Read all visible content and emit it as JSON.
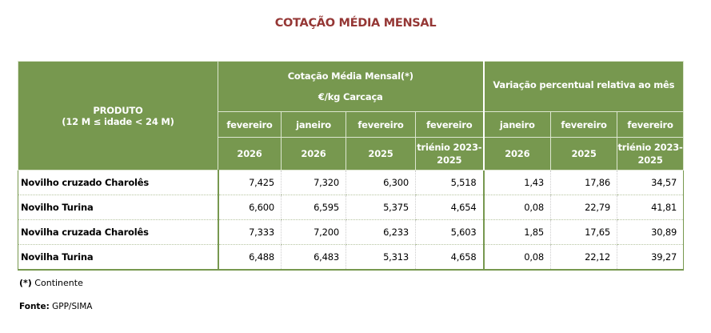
{
  "title": "COTAÇÃO MÉDIA MENSAL",
  "header": {
    "produto": "PRODUTO",
    "idade": "(12 M ≤ idade < 24 M)",
    "group1_line1": "Cotação Média Mensal(*)",
    "group1_line2": "€/kg Carcaça",
    "group2": "Variação percentual relativa  ao mês",
    "months": [
      "fevereiro",
      "janeiro",
      "fevereiro",
      "fevereiro",
      "janeiro",
      "fevereiro",
      "fevereiro"
    ],
    "years": [
      "2026",
      "2026",
      "2025",
      "triénio 2023-2025",
      "2026",
      "2025",
      "triénio 2023-2025"
    ]
  },
  "rows": [
    {
      "produto": "Novilho  cruzado Charolês",
      "values": [
        "7,425",
        "7,320",
        "6,300",
        "5,518",
        "1,43",
        "17,86",
        "34,57"
      ]
    },
    {
      "produto": "Novilho Turina",
      "values": [
        "6,600",
        "6,595",
        "5,375",
        "4,654",
        "0,08",
        "22,79",
        "41,81"
      ]
    },
    {
      "produto": "Novilha cruzada Charolês",
      "values": [
        "7,333",
        "7,200",
        "6,233",
        "5,603",
        "1,85",
        "17,65",
        "30,89"
      ]
    },
    {
      "produto": "Novilha Turina",
      "values": [
        "6,488",
        "6,483",
        "5,313",
        "4,658",
        "0,08",
        "22,12",
        "39,27"
      ]
    }
  ],
  "footnote": {
    "mark": "(*)",
    "text": " Continente"
  },
  "source": {
    "label": "Fonte:",
    "text": " GPP/SIMA"
  }
}
